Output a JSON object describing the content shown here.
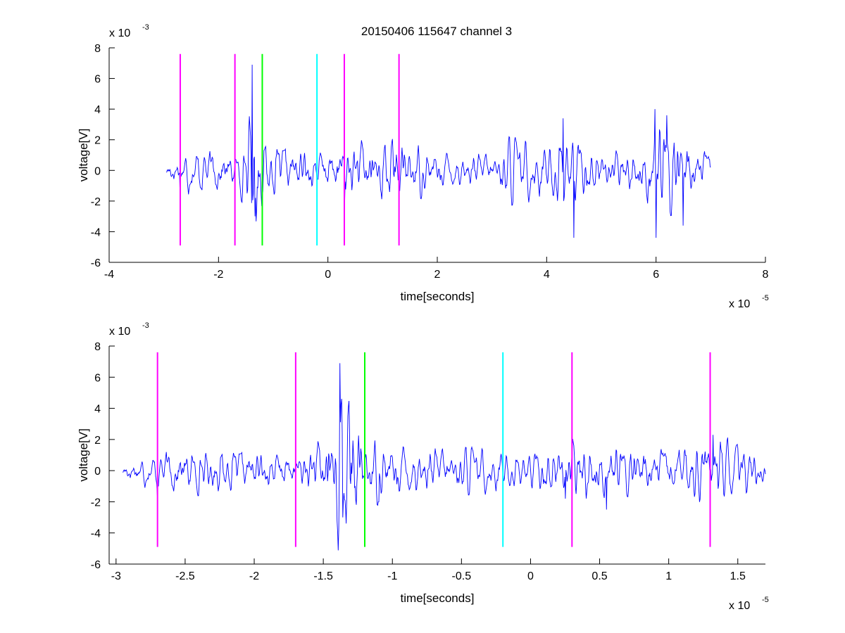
{
  "figure": {
    "title": "20150406 115647 channel 3"
  },
  "chart_data": [
    {
      "type": "line",
      "title": "20150406 115647 channel 3",
      "xlabel": "time[seconds]",
      "ylabel": "voltage[V]",
      "x_multiplier": "x 10",
      "x_exponent": "-5",
      "y_multiplier": "x 10",
      "y_exponent": "-3",
      "xlim": [
        -4e-05,
        8e-05
      ],
      "ylim": [
        -0.006,
        0.008
      ],
      "x_ticks": [
        -4e-05,
        -2e-05,
        0,
        2e-05,
        4e-05,
        6e-05,
        8e-05
      ],
      "x_tick_labels": [
        "-4",
        "-2",
        "0",
        "2",
        "4",
        "6",
        "8"
      ],
      "y_ticks": [
        -0.006,
        -0.004,
        -0.002,
        0,
        0.002,
        0.004,
        0.006,
        0.008
      ],
      "y_tick_labels": [
        "-6",
        "-4",
        "-2",
        "0",
        "2",
        "4",
        "6",
        "8"
      ],
      "series": [
        {
          "color": "#0000ff",
          "x_range": [
            -2.95e-05,
            7e-05
          ],
          "envelope": [
            [
              -2.95e-05,
              0.0009
            ],
            [
              -2.7e-05,
              0.0012
            ],
            [
              -2.5e-05,
              0.0016
            ],
            [
              -2e-05,
              0.0015
            ],
            [
              -1.7e-05,
              0.0012
            ],
            [
              -1.5e-05,
              0.0024
            ],
            [
              -1.38e-05,
              0.0068
            ],
            [
              -1.2e-05,
              0.0024
            ],
            [
              -1e-05,
              0.0018
            ],
            [
              -5e-06,
              0.0016
            ],
            [
              0,
              0.0014
            ],
            [
              3e-06,
              0.0022
            ],
            [
              1.3e-05,
              0.0024
            ],
            [
              2e-05,
              0.0013
            ],
            [
              3e-05,
              0.0012
            ],
            [
              3.3e-05,
              0.0022
            ],
            [
              4e-05,
              0.0018
            ],
            [
              4.3e-05,
              0.0034
            ],
            [
              4.6e-05,
              0.0022
            ],
            [
              5e-05,
              0.0014
            ],
            [
              5.5e-05,
              0.0014
            ],
            [
              5.8e-05,
              0.002
            ],
            [
              6e-05,
              0.004
            ],
            [
              6.3e-05,
              0.0032
            ],
            [
              6.6e-05,
              0.0022
            ],
            [
              7e-05,
              0.0012
            ]
          ],
          "peaks": [
            [
              -2.7e-05,
              -0.0016
            ],
            [
              -1.38e-05,
              0.0069
            ],
            [
              -1.33e-05,
              -0.003
            ],
            [
              3e-06,
              -0.0025
            ],
            [
              4.3e-05,
              0.0034
            ],
            [
              4.5e-05,
              -0.0044
            ],
            [
              5.98e-05,
              0.004
            ],
            [
              6e-05,
              -0.0044
            ],
            [
              6.2e-05,
              0.0036
            ],
            [
              6.5e-05,
              -0.0036
            ]
          ]
        }
      ],
      "markers": [
        {
          "x": -2.7e-05,
          "color": "#ff00ff",
          "y_range": [
            -0.0049,
            0.0076
          ]
        },
        {
          "x": -1.7e-05,
          "color": "#ff00ff",
          "y_range": [
            -0.0049,
            0.0076
          ]
        },
        {
          "x": -1.2e-05,
          "color": "#00ff00",
          "y_range": [
            -0.0049,
            0.0076
          ]
        },
        {
          "x": -2e-06,
          "color": "#00ffff",
          "y_range": [
            -0.0049,
            0.0076
          ]
        },
        {
          "x": 3e-06,
          "color": "#ff00ff",
          "y_range": [
            -0.0049,
            0.0076
          ]
        },
        {
          "x": 1.3e-05,
          "color": "#ff00ff",
          "y_range": [
            -0.0049,
            0.0076
          ]
        }
      ],
      "seed": 17
    },
    {
      "type": "line",
      "title": "",
      "xlabel": "time[seconds]",
      "ylabel": "voltage[V]",
      "x_multiplier": "x 10",
      "x_exponent": "-5",
      "y_multiplier": "x 10",
      "y_exponent": "-3",
      "xlim": [
        -3.05e-05,
        1.7e-05
      ],
      "ylim": [
        -0.006,
        0.008
      ],
      "x_ticks": [
        -3e-05,
        -2.5e-05,
        -2e-05,
        -1.5e-05,
        -1e-05,
        -5e-06,
        0,
        5e-06,
        1e-05,
        1.5e-05
      ],
      "x_tick_labels": [
        "-3",
        "-2.5",
        "-2",
        "-1.5",
        "-1",
        "-0.5",
        "0",
        "0.5",
        "1",
        "1.5"
      ],
      "y_ticks": [
        -0.006,
        -0.004,
        -0.002,
        0,
        0.002,
        0.004,
        0.006,
        0.008
      ],
      "y_tick_labels": [
        "-6",
        "-4",
        "-2",
        "0",
        "2",
        "4",
        "6",
        "8"
      ],
      "series": [
        {
          "color": "#0000ff",
          "x_range": [
            -2.95e-05,
            1.7e-05
          ],
          "envelope": [
            [
              -2.95e-05,
              0.0008
            ],
            [
              -2.7e-05,
              0.0012
            ],
            [
              -2.6e-05,
              0.0016
            ],
            [
              -2e-05,
              0.0014
            ],
            [
              -1.7e-05,
              0.0012
            ],
            [
              -1.5e-05,
              0.0024
            ],
            [
              -1.38e-05,
              0.0068
            ],
            [
              -1.2e-05,
              0.0024
            ],
            [
              -1e-05,
              0.0018
            ],
            [
              -5e-06,
              0.0015
            ],
            [
              0,
              0.0014
            ],
            [
              3e-06,
              0.0022
            ],
            [
              1e-05,
              0.0016
            ],
            [
              1.3e-05,
              0.0024
            ],
            [
              1.7e-05,
              0.0012
            ]
          ],
          "peaks": [
            [
              -2.7e-05,
              -0.0016
            ],
            [
              -1.38e-05,
              0.0069
            ],
            [
              -1.36e-05,
              -0.003
            ],
            [
              -1.1e-05,
              -0.002
            ],
            [
              2.5e-06,
              -0.0018
            ],
            [
              5.5e-06,
              -0.0025
            ],
            [
              1.32e-05,
              0.0023
            ]
          ]
        }
      ],
      "markers": [
        {
          "x": -2.7e-05,
          "color": "#ff00ff",
          "y_range": [
            -0.0049,
            0.0076
          ]
        },
        {
          "x": -1.7e-05,
          "color": "#ff00ff",
          "y_range": [
            -0.0049,
            0.0076
          ]
        },
        {
          "x": -1.2e-05,
          "color": "#00ff00",
          "y_range": [
            -0.0049,
            0.0076
          ]
        },
        {
          "x": -2e-06,
          "color": "#00ffff",
          "y_range": [
            -0.0049,
            0.0076
          ]
        },
        {
          "x": 3e-06,
          "color": "#ff00ff",
          "y_range": [
            -0.0049,
            0.0076
          ]
        },
        {
          "x": 1.3e-05,
          "color": "#ff00ff",
          "y_range": [
            -0.0049,
            0.0076
          ]
        }
      ],
      "seed": 17
    }
  ]
}
